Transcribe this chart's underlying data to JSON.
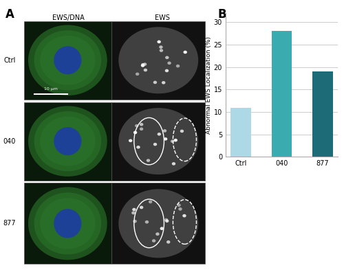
{
  "fig_width": 5.0,
  "fig_height": 3.96,
  "fig_dpi": 100,
  "background_color": "#ffffff",
  "panel_A_label": "A",
  "panel_B_label": "B",
  "col_headers": [
    "EWS/DNA",
    "EWS"
  ],
  "row_labels": [
    "Ctrl",
    "040",
    "877"
  ],
  "scale_bar_text": "10 μm",
  "categories": [
    "Ctrl",
    "040",
    "877"
  ],
  "values": [
    11,
    28,
    19
  ],
  "bar_colors": [
    "#add8e6",
    "#3aacb0",
    "#1e6b78"
  ],
  "ylabel": "Abnormal EWS Localization (%)",
  "ylim": [
    0,
    32
  ],
  "yticks": [
    0,
    5,
    10,
    15,
    20,
    25,
    30
  ],
  "grid_color": "#cccccc",
  "bar_width": 0.5,
  "left_panel_bg": "#1a1a1a",
  "cell_green": "#3a8a3a",
  "cell_blue": "#2244bb",
  "ews_gray": "#888888",
  "microscopy_border": "#444444"
}
